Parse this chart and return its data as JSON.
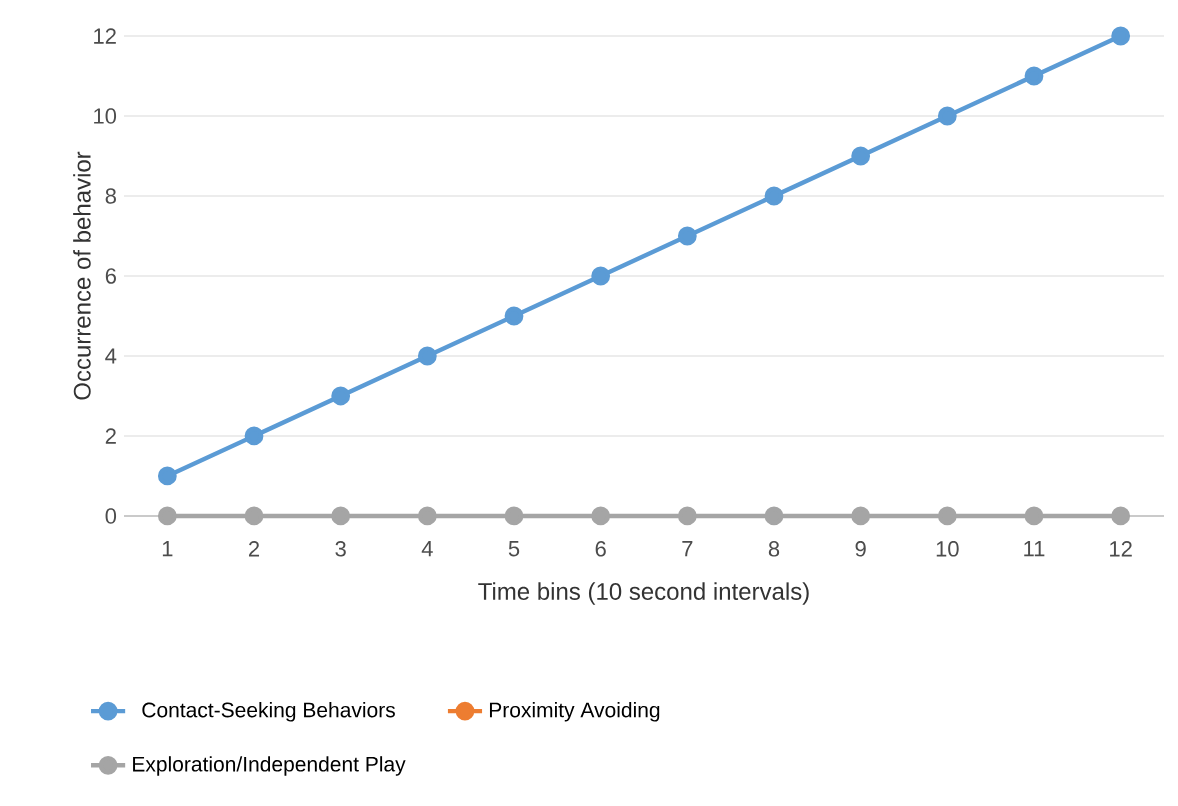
{
  "chart_data": {
    "type": "line",
    "xlabel": "Time bins (10 second intervals)",
    "ylabel": "Occurrence of behavior",
    "categories": [
      "1",
      "2",
      "3",
      "4",
      "5",
      "6",
      "7",
      "8",
      "9",
      "10",
      "11",
      "12"
    ],
    "series": [
      {
        "name": "Contact-Seeking Behaviors",
        "color": "#5b9bd5",
        "values": [
          1,
          2,
          3,
          4,
          5,
          6,
          7,
          8,
          9,
          10,
          11,
          12
        ]
      },
      {
        "name": "Proximity Avoiding",
        "color": "#ed7d31",
        "values": [
          null,
          null,
          null,
          null,
          null,
          null,
          null,
          null,
          null,
          null,
          null,
          null
        ]
      },
      {
        "name": "Exploration/Independent Play",
        "color": "#a5a5a5",
        "values": [
          0,
          0,
          0,
          0,
          0,
          0,
          0,
          0,
          0,
          0,
          0,
          0
        ]
      }
    ],
    "ylim": [
      0,
      12
    ],
    "yticks": [
      0,
      2,
      4,
      6,
      8,
      10,
      12
    ],
    "grid": "y",
    "legend": "bottom",
    "marker": "circle",
    "line_style": "solid"
  }
}
